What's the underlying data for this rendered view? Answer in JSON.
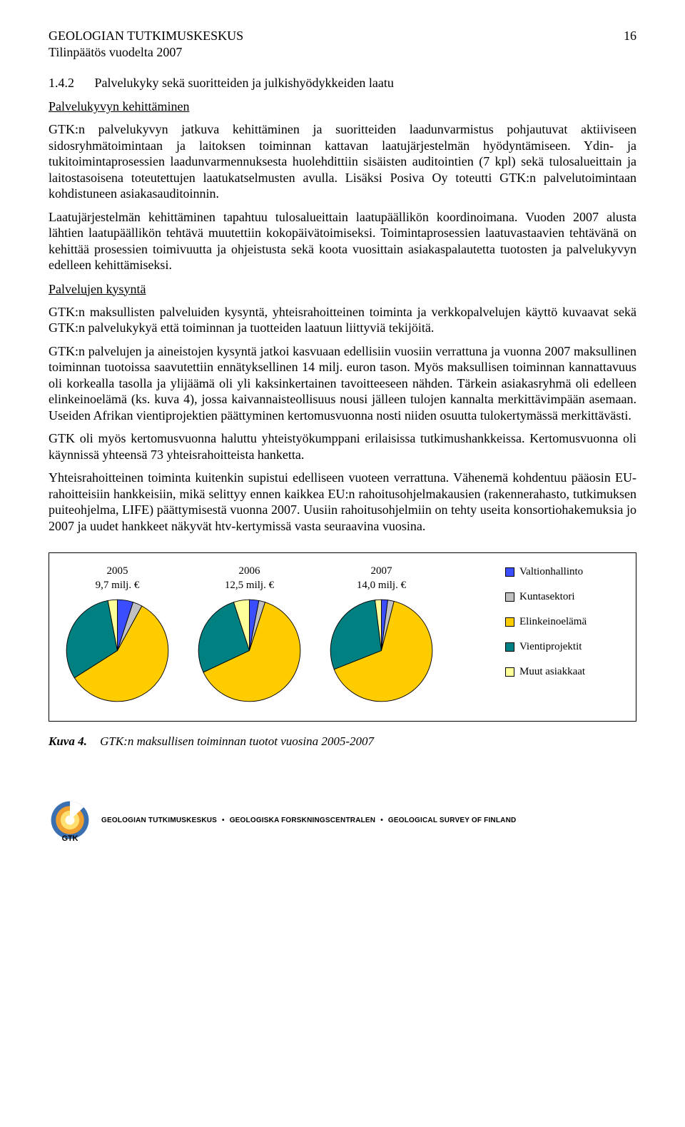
{
  "header": {
    "org": "GEOLOGIAN TUTKIMUSKESKUS",
    "page_number": "16",
    "subtitle": "Tilinpäätös vuodelta 2007"
  },
  "section": {
    "num": "1.4.2",
    "title": "Palvelukyky sekä suoritteiden ja julkishyödykkeiden laatu"
  },
  "sub1": "Palvelukyvyn kehittäminen",
  "para1": "GTK:n palvelukyvyn jatkuva kehittäminen ja suoritteiden laadunvarmistus pohjautuvat aktiiviseen sidosryhmätoimintaan ja laitoksen toiminnan kattavan laatujärjestelmän hyödyntämiseen. Ydin- ja tukitoimintaprosessien laadunvarmennuksesta huolehdittiin sisäisten auditointien (7 kpl) sekä tulosalueittain ja laitostasoisena toteutettujen laatukatselmusten avulla. Lisäksi Posiva Oy toteutti GTK:n palvelutoimintaan kohdistuneen asiakasauditoinnin.",
  "para2": "Laatujärjestelmän kehittäminen tapahtuu tulosalueittain laatupäällikön koordinoimana. Vuoden 2007 alusta lähtien laatupäällikön tehtävä muutettiin kokopäivätoimiseksi. Toimintaprosessien laatuvastaavien tehtävänä on kehittää prosessien toimivuutta ja ohjeistusta sekä koota vuosittain asiakaspalautetta tuotosten ja palvelukyvyn edelleen kehittämiseksi.",
  "sub2": "Palvelujen kysyntä",
  "para3": "GTK:n maksullisten palveluiden kysyntä, yhteisrahoitteinen toiminta ja verkkopalvelujen käyttö kuvaavat sekä GTK:n palvelukykyä että toiminnan ja tuotteiden laatuun liittyviä tekijöitä.",
  "para4": "GTK:n palvelujen ja aineistojen kysyntä jatkoi kasvuaan edellisiin vuosiin verrattuna ja vuonna 2007 maksullinen toiminnan tuotoissa saavutettiin ennätyksellinen 14 milj. euron tason. Myös maksullisen toiminnan kannattavuus oli korkealla tasolla ja ylijäämä oli yli kaksinkertainen tavoitteeseen nähden. Tärkein asiakasryhmä oli edelleen elinkeinoelämä (ks. kuva 4), jossa kaivannaisteollisuus nousi jälleen tulojen kannalta merkittävimpään asemaan. Useiden Afrikan vientiprojektien päättyminen kertomusvuonna nosti niiden osuutta tulokertymässä merkittävästi.",
  "para5": "GTK oli myös kertomusvuonna haluttu yhteistyökumppani erilaisissa tutkimushankkeissa. Kertomusvuonna oli käynnissä yhteensä 73 yhteisrahoitteista hanketta.",
  "para6": "Yhteisrahoitteinen toiminta kuitenkin supistui edelliseen vuoteen verrattuna. Vähenemä kohdentuu pääosin EU-rahoitteisiin hankkeisiin, mikä selittyy ennen kaikkea EU:n rahoitusohjelmakausien (rakennerahasto, tutkimuksen puiteohjelma, LIFE) päättymisestä vuonna 2007. Uusiin rahoitusohjelmiin on tehty useita konsortiohakemuksia jo 2007 ja uudet hankkeet näkyvät htv-kertymissä vasta seuraavina vuosina.",
  "chart": {
    "type": "pie-multiples",
    "background_color": "#ffffff",
    "border_color": "#000000",
    "label_fontsize": 15,
    "pies": [
      {
        "year": "2005",
        "total": "9,7 milj. €",
        "slices": [
          {
            "key": "valtionhallinto",
            "value": 5,
            "color": "#3a4eff"
          },
          {
            "key": "kuntasektori",
            "value": 3,
            "color": "#c0c0c0"
          },
          {
            "key": "elinkeinoelama",
            "value": 58,
            "color": "#ffcc00"
          },
          {
            "key": "vientiprojektit",
            "value": 31,
            "color": "#008080"
          },
          {
            "key": "muut",
            "value": 3,
            "color": "#ffff99"
          }
        ]
      },
      {
        "year": "2006",
        "total": "12,5 milj. €",
        "slices": [
          {
            "key": "valtionhallinto",
            "value": 3,
            "color": "#3a4eff"
          },
          {
            "key": "kuntasektori",
            "value": 2,
            "color": "#c0c0c0"
          },
          {
            "key": "elinkeinoelama",
            "value": 63,
            "color": "#ffcc00"
          },
          {
            "key": "vientiprojektit",
            "value": 27,
            "color": "#008080"
          },
          {
            "key": "muut",
            "value": 5,
            "color": "#ffff99"
          }
        ]
      },
      {
        "year": "2007",
        "total": "14,0 milj. €",
        "slices": [
          {
            "key": "valtionhallinto",
            "value": 2,
            "color": "#3a4eff"
          },
          {
            "key": "kuntasektori",
            "value": 2,
            "color": "#c0c0c0"
          },
          {
            "key": "elinkeinoelama",
            "value": 65,
            "color": "#ffcc00"
          },
          {
            "key": "vientiprojektit",
            "value": 29,
            "color": "#008080"
          },
          {
            "key": "muut",
            "value": 2,
            "color": "#ffff99"
          }
        ]
      }
    ],
    "legend": [
      {
        "label": "Valtionhallinto",
        "color": "#3a4eff"
      },
      {
        "label": "Kuntasektori",
        "color": "#c0c0c0"
      },
      {
        "label": "Elinkeinoelämä",
        "color": "#ffcc00"
      },
      {
        "label": "Vientiprojektit",
        "color": "#008080"
      },
      {
        "label": "Muut asiakkaat",
        "color": "#ffff99"
      }
    ]
  },
  "caption": {
    "num": "Kuva 4.",
    "text": "GTK:n maksullisen toiminnan tuotot vuosina 2005-2007"
  },
  "footer": {
    "fi": "GEOLOGIAN TUTKIMUSKESKUS",
    "sv": "GEOLOGISKA FORSKNINGSCENTRALEN",
    "en": "GEOLOGICAL SURVEY OF FINLAND",
    "logo_text": "GTK",
    "logo_colors": {
      "outer": "#3a6fb0",
      "mid": "#f0a030",
      "inner": "#ffe070",
      "core": "#fffef0"
    }
  }
}
